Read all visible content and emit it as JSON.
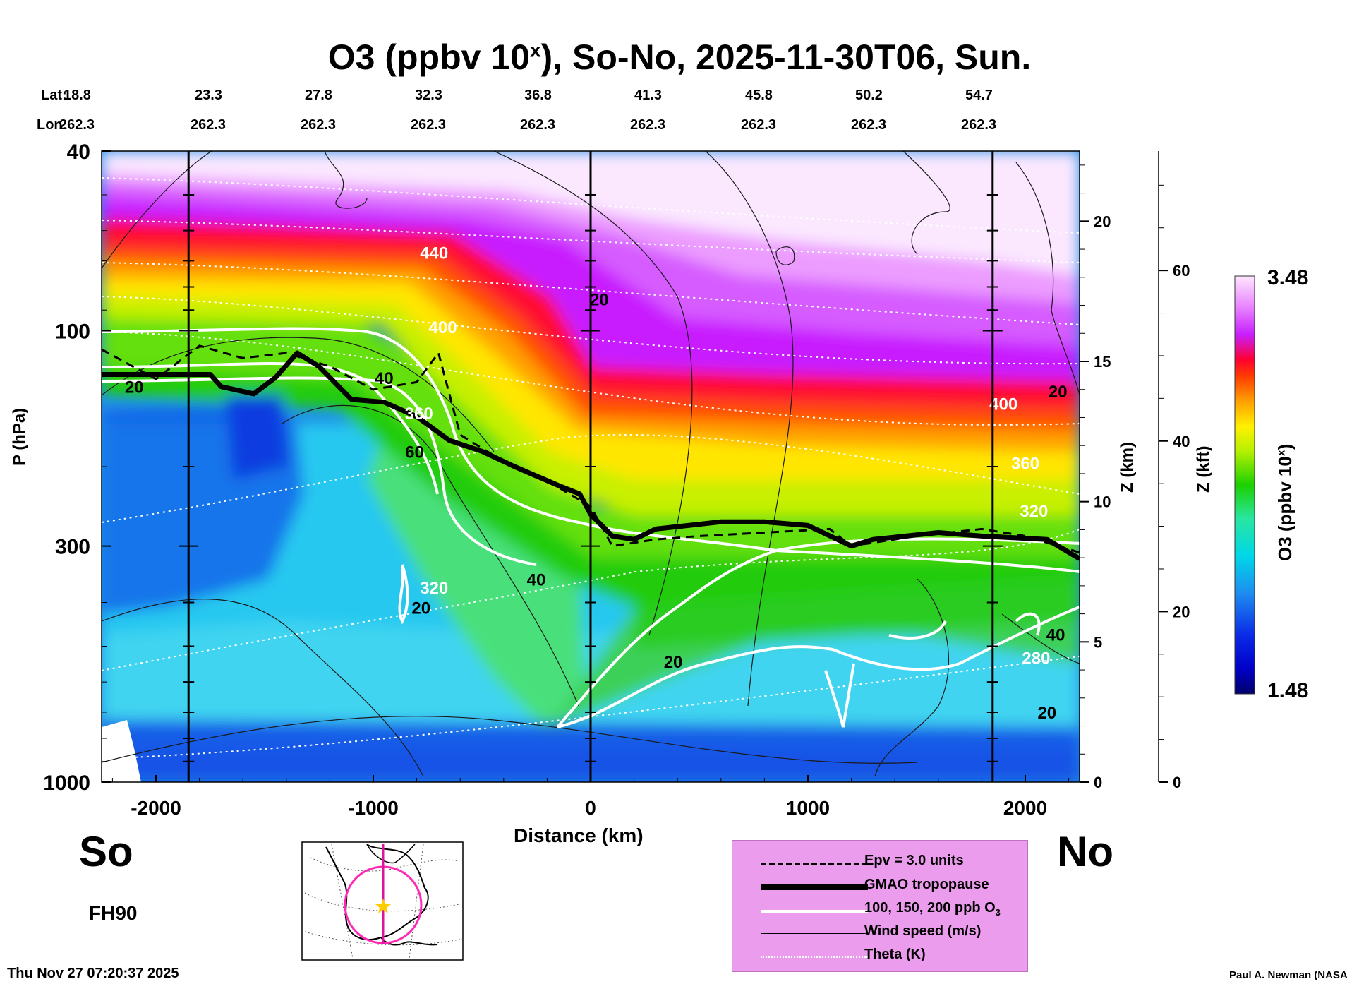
{
  "title_main": "O3 (ppbv 10",
  "title_sup": "x",
  "title_rest": "), So-No, 2025-11-30T06, Sun.",
  "lat_label": "Lat:",
  "lon_label": "Lon:",
  "lats": [
    "18.8",
    "23.3",
    "27.8",
    "32.3",
    "36.8",
    "41.3",
    "45.8",
    "50.2",
    "54.7"
  ],
  "lons": [
    "262.3",
    "262.3",
    "262.3",
    "262.3",
    "262.3",
    "262.3",
    "262.3",
    "262.3",
    "262.3"
  ],
  "so_label": "So",
  "no_label": "No",
  "fh_label": "FH90",
  "timestamp": "Thu Nov 27 07:20:37 2025",
  "credit": "Paul A. Newman (NASA",
  "colorbar": {
    "max_label": "3.48",
    "min_label": "1.48",
    "title_main": "O3 (ppbv 10",
    "title_sup": "x",
    "title_rest": ")"
  },
  "legend": [
    {
      "label": "Epv = 3.0 units",
      "style": "dashed",
      "color": "#000000"
    },
    {
      "label": "GMAO tropopause",
      "style": "thick",
      "color": "#000000"
    },
    {
      "label": "100, 150, 200 ppb O",
      "sub": "3",
      "style": "white",
      "color": "#ffffff"
    },
    {
      "label": "Wind speed (m/s)",
      "style": "thin",
      "color": "#000000"
    },
    {
      "label": "Theta (K)",
      "style": "dotted",
      "color": "#ffffff"
    }
  ],
  "chart_data": {
    "type": "heatmap",
    "xlabel": "Distance (km)",
    "ylabel": "P (hPa)",
    "y2label": "Z (km)",
    "y3label": "Z (kft)",
    "xlim": [
      -2250,
      2250
    ],
    "ylim": [
      1000,
      40
    ],
    "yscale": "log",
    "x_ticks": [
      -2000,
      -1000,
      0,
      1000,
      2000
    ],
    "x_tick_labels": [
      "-2000",
      "-1000",
      "0",
      "1000",
      "2000"
    ],
    "y_ticks": [
      40,
      100,
      300,
      1000
    ],
    "y_tick_labels": [
      "40",
      "100",
      "300",
      "1000"
    ],
    "z_km_ticks": [
      0,
      5,
      10,
      15,
      20
    ],
    "z_km_tick_labels": [
      "0",
      "5",
      "10",
      "15",
      "20"
    ],
    "z_kft_ticks": [
      0,
      20,
      40,
      60
    ],
    "z_kft_tick_labels": [
      "0",
      "20",
      "40",
      "60"
    ],
    "colorbar_range": [
      1.48,
      3.48
    ],
    "tropopause_hPa": [
      [
        -2250,
        125
      ],
      [
        -1750,
        125
      ],
      [
        -1700,
        133
      ],
      [
        -1550,
        138
      ],
      [
        -1450,
        127
      ],
      [
        -1350,
        112
      ],
      [
        -1250,
        120
      ],
      [
        -1100,
        142
      ],
      [
        -950,
        144
      ],
      [
        -800,
        155
      ],
      [
        -650,
        175
      ],
      [
        -500,
        185
      ],
      [
        -350,
        200
      ],
      [
        -150,
        220
      ],
      [
        -50,
        230
      ],
      [
        0,
        255
      ],
      [
        100,
        285
      ],
      [
        200,
        290
      ],
      [
        300,
        275
      ],
      [
        450,
        270
      ],
      [
        600,
        265
      ],
      [
        800,
        265
      ],
      [
        1000,
        270
      ],
      [
        1200,
        300
      ],
      [
        1300,
        290
      ],
      [
        1450,
        285
      ],
      [
        1600,
        280
      ],
      [
        1800,
        285
      ],
      [
        2100,
        290
      ],
      [
        2250,
        320
      ]
    ],
    "epv_hPa": [
      [
        -2250,
        110
      ],
      [
        -2000,
        128
      ],
      [
        -1800,
        108
      ],
      [
        -1600,
        115
      ],
      [
        -1400,
        112
      ],
      [
        -1200,
        120
      ],
      [
        -1000,
        135
      ],
      [
        -800,
        130
      ],
      [
        -700,
        112
      ],
      [
        -600,
        170
      ],
      [
        -400,
        195
      ],
      [
        -200,
        215
      ],
      [
        0,
        245
      ],
      [
        100,
        300
      ],
      [
        300,
        290
      ],
      [
        500,
        285
      ],
      [
        800,
        280
      ],
      [
        1100,
        275
      ],
      [
        1200,
        300
      ],
      [
        1500,
        285
      ],
      [
        1800,
        275
      ],
      [
        2000,
        285
      ],
      [
        2250,
        310
      ]
    ],
    "theta_labels": [
      {
        "label": "440",
        "x": -720,
        "p": 67
      },
      {
        "label": "400",
        "x": -680,
        "p": 98
      },
      {
        "label": "360",
        "x": -790,
        "p": 152
      },
      {
        "label": "320",
        "x": -720,
        "p": 370
      },
      {
        "label": "400",
        "x": 1900,
        "p": 145
      },
      {
        "label": "360",
        "x": 2000,
        "p": 196
      },
      {
        "label": "320",
        "x": 2040,
        "p": 250
      },
      {
        "label": "280",
        "x": 2050,
        "p": 530
      }
    ],
    "wind_labels": [
      {
        "label": "20",
        "x": -2100,
        "p": 133
      },
      {
        "label": "40",
        "x": -950,
        "p": 127
      },
      {
        "label": "60",
        "x": -810,
        "p": 185
      },
      {
        "label": "20",
        "x": 40,
        "p": 85
      },
      {
        "label": "40",
        "x": -250,
        "p": 355
      },
      {
        "label": "20",
        "x": -780,
        "p": 410
      },
      {
        "label": "20",
        "x": 380,
        "p": 540
      },
      {
        "label": "20",
        "x": 2150,
        "p": 136
      },
      {
        "label": "40",
        "x": 2140,
        "p": 470
      },
      {
        "label": "20",
        "x": 2100,
        "p": 700
      }
    ]
  }
}
